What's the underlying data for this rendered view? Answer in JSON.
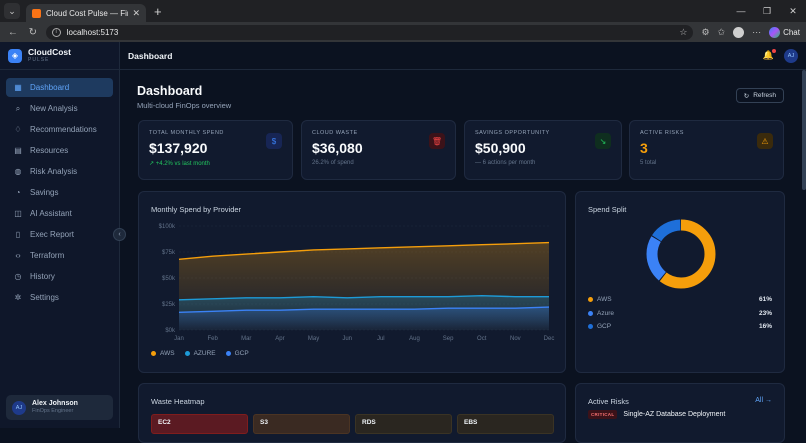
{
  "browser": {
    "tab_title": "Cloud Cost Pulse — FinOps Dashb",
    "url": "localhost:5173",
    "chat_label": "Chat"
  },
  "sidebar": {
    "brand_name": "CloudCost",
    "brand_sub": "PULSE",
    "items": [
      {
        "label": "Dashboard",
        "icon": "grid-icon",
        "glyph": "▦"
      },
      {
        "label": "New Analysis",
        "icon": "search-icon",
        "glyph": "⌕"
      },
      {
        "label": "Recommendations",
        "icon": "lightbulb-icon",
        "glyph": "♢"
      },
      {
        "label": "Resources",
        "icon": "server-icon",
        "glyph": "▤"
      },
      {
        "label": "Risk Analysis",
        "icon": "shield-icon",
        "glyph": "◍"
      },
      {
        "label": "Savings",
        "icon": "piggy-bank-icon",
        "glyph": "◔"
      },
      {
        "label": "AI Assistant",
        "icon": "bot-icon",
        "glyph": "◫"
      },
      {
        "label": "Exec Report",
        "icon": "file-icon",
        "glyph": "▯"
      },
      {
        "label": "Terraform",
        "icon": "code-icon",
        "glyph": "‹›"
      },
      {
        "label": "History",
        "icon": "clock-icon",
        "glyph": "◷"
      },
      {
        "label": "Settings",
        "icon": "gear-icon",
        "glyph": "✲"
      }
    ],
    "user": {
      "initials": "AJ",
      "name": "Alex Johnson",
      "role": "FinOps Engineer"
    }
  },
  "topbar": {
    "title": "Dashboard",
    "avatar_initials": "AJ"
  },
  "page": {
    "title": "Dashboard",
    "subtitle": "Multi-cloud FinOps overview",
    "refresh_label": "Refresh"
  },
  "kpis": [
    {
      "label": "TOTAL MONTHLY SPEND",
      "value": "$137,920",
      "sub": "↗ +4.2% vs last month",
      "icon": "dollar-icon",
      "glyph": "$",
      "color": "#3b82f6",
      "bg": "#172554"
    },
    {
      "label": "CLOUD WASTE",
      "value": "$36,080",
      "sub": "26.2% of spend",
      "icon": "trash-icon",
      "glyph": "🗑",
      "color": "#ef4444",
      "bg": "#3b1219"
    },
    {
      "label": "SAVINGS OPPORTUNITY",
      "value": "$50,900",
      "sub": "— 6 actions  per month",
      "icon": "trend-down-icon",
      "glyph": "↘",
      "color": "#22c55e",
      "bg": "#0f2e1f"
    },
    {
      "label": "ACTIVE RISKS",
      "value": "3",
      "sub": "5 total",
      "icon": "warning-icon",
      "glyph": "⚠",
      "color": "#f59e0b",
      "bg": "#3a2a0c"
    }
  ],
  "spend_chart_title": "Monthly Spend by Provider",
  "split_title": "Spend Split",
  "heatmap_title": "Waste Heatmap",
  "heatmap_cells": [
    "EC2",
    "S3",
    "RDS",
    "EBS"
  ],
  "risks_title": "Active Risks",
  "risks_all_label": "All →",
  "risk_item": {
    "badge": "CRITICAL",
    "text": "Single-AZ Database Deployment"
  },
  "chart_data": [
    {
      "type": "area",
      "title": "Monthly Spend by Provider",
      "x": [
        "Jan",
        "Feb",
        "Mar",
        "Apr",
        "May",
        "Jun",
        "Jul",
        "Aug",
        "Sep",
        "Oct",
        "Nov",
        "Dec"
      ],
      "yticks": [
        "$0k",
        "$25k",
        "$50k",
        "$75k",
        "$100k"
      ],
      "ylim": [
        0,
        100
      ],
      "series": [
        {
          "name": "AWS",
          "color": "#f59e0b",
          "values": [
            68,
            71,
            73,
            75,
            77,
            78,
            79,
            80,
            81,
            82,
            83,
            84
          ]
        },
        {
          "name": "AZURE",
          "color": "#1d9bd7",
          "values": [
            29,
            30,
            31,
            31,
            32,
            31,
            32,
            32,
            32,
            33,
            32,
            32
          ]
        },
        {
          "name": "GCP",
          "color": "#3b82f6",
          "values": [
            17,
            18,
            19,
            19,
            20,
            20,
            20,
            20,
            21,
            21,
            21,
            22
          ]
        }
      ],
      "legend": "bottom-left"
    },
    {
      "type": "pie",
      "title": "Spend Split",
      "series": [
        {
          "name": "AWS",
          "value": 61,
          "label": "61%",
          "color": "#f59e0b"
        },
        {
          "name": "Azure",
          "value": 23,
          "label": "23%",
          "color": "#3b82f6"
        },
        {
          "name": "GCP",
          "value": 16,
          "label": "16%",
          "color": "#1e6fd9"
        }
      ]
    }
  ]
}
